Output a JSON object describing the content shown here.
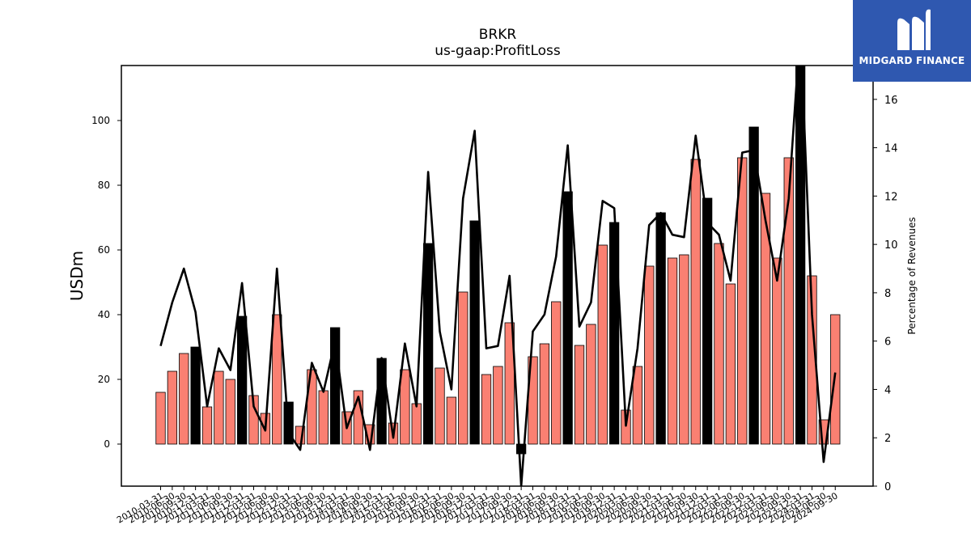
{
  "logo": {
    "text": "MIDGARD FINANCE",
    "icon": "midgard-m-logo-icon",
    "bg_color": "#2f58b0"
  },
  "chart_data": {
    "type": "bar",
    "title": "BRKR",
    "subtitle": "us-gaap:ProfitLoss",
    "ylabel": "USDm",
    "y2label": "Percentage of Revenues",
    "ylim": [
      -13,
      117
    ],
    "y2lim": [
      0,
      17.4
    ],
    "yticks": [
      0,
      20,
      40,
      60,
      80,
      100
    ],
    "y2ticks": [
      0,
      2,
      4,
      6,
      8,
      10,
      12,
      14,
      16
    ],
    "grid": false,
    "colors": {
      "quarter_bar": "#fa8072",
      "annual_bar": "#000000",
      "line": "#000000"
    },
    "categories": [
      "2010-03-31",
      "2010-06-30",
      "2010-09-30",
      "2010-12-31",
      "2011-03-31",
      "2011-06-30",
      "2011-09-30",
      "2011-12-31",
      "2012-03-31",
      "2012-06-30",
      "2012-09-30",
      "2012-12-31",
      "2013-03-31",
      "2013-06-30",
      "2013-09-30",
      "2013-12-31",
      "2014-03-31",
      "2014-06-30",
      "2014-09-30",
      "2014-12-31",
      "2015-03-31",
      "2015-06-30",
      "2015-09-30",
      "2015-12-31",
      "2016-03-31",
      "2016-06-30",
      "2016-09-30",
      "2016-12-31",
      "2017-03-31",
      "2017-06-30",
      "2017-09-30",
      "2017-12-31",
      "2018-03-31",
      "2018-06-30",
      "2018-09-30",
      "2018-12-31",
      "2019-03-31",
      "2019-06-30",
      "2019-09-30",
      "2019-12-31",
      "2020-03-31",
      "2020-06-30",
      "2020-09-30",
      "2020-12-31",
      "2021-03-31",
      "2021-06-30",
      "2021-09-30",
      "2021-12-31",
      "2022-03-31",
      "2022-06-30",
      "2022-09-30",
      "2022-12-31",
      "2023-03-31",
      "2023-06-30",
      "2023-09-30",
      "2023-12-31",
      "2024-03-31",
      "2024-06-30",
      "2024-09-30"
    ],
    "tick_labels": [
      "2010-03-31",
      "2010-06-30",
      "2010-09-30",
      "2010-12-31",
      "2011-03-31",
      "2011-06-30",
      "2011-09-30",
      "2011-12-31",
      "2012-03-31",
      "2012-06-30",
      "2012-09-30",
      "2012-12-31",
      "2013-03-31",
      "2013-06-30",
      "2013-09-30",
      "2013-12-31",
      "2014-03-31",
      "2014-06-30",
      "2014-09-30",
      "2014-12-31",
      "2015-03-31",
      "2015-06-30",
      "2015-09-30",
      "2015-12-31",
      "2016-03-31",
      "2016-06-30",
      "2016-09-30",
      "2016-12-31",
      "2017-03-31",
      "2017-06-30",
      "2017-09-30",
      "2017-12-31",
      "2018-03-31",
      "2018-06-30",
      "2018-09-30",
      "2018-12-31",
      "2019-03-31",
      "2019-06-30",
      "2019-09-30",
      "2019-12-31",
      "2020-03-31",
      "2020-06-30",
      "2020-09-30",
      "2020-12-31",
      "2021-03-31",
      "2021-06-30",
      "2021-09-30",
      "2021-12-31",
      "2022-03-31",
      "2022-06-30",
      "2022-09-30",
      "2022-12-31",
      "2023-03-31",
      "2023-06-30",
      "2023-09-30",
      "2023-12-31",
      "2024-03-31",
      "2024-06-30",
      "2024-09-30"
    ],
    "series": [
      {
        "type": "bar",
        "values": [
          16,
          22.5,
          28,
          30,
          11.5,
          22.5,
          20,
          39.5,
          15,
          9.5,
          40,
          13,
          5.5,
          23,
          16.5,
          36,
          10,
          16.5,
          6,
          26.5,
          6.5,
          23,
          12.5,
          62,
          23.5,
          14.5,
          47,
          69,
          21.5,
          24,
          37.5,
          -3,
          27,
          31,
          44,
          78,
          30.5,
          37,
          61.5,
          68.5,
          10.5,
          24,
          55,
          71.5,
          57.5,
          58.5,
          88,
          76,
          62,
          49.5,
          88.5,
          98,
          77.5,
          57.5,
          88.5,
          118,
          52,
          7.5,
          40
        ]
      },
      {
        "type": "line",
        "axis": "right",
        "values": [
          5.8,
          7.6,
          9,
          7.2,
          3.3,
          5.7,
          4.8,
          8.4,
          3.3,
          2.3,
          9.0,
          2.2,
          1.5,
          5.1,
          3.9,
          6.0,
          2.4,
          3.7,
          1.5,
          5.3,
          2.0,
          5.9,
          3.3,
          13,
          6.4,
          4,
          11.9,
          14.7,
          5.7,
          5.8,
          8.7,
          0,
          6.4,
          7.1,
          9.5,
          14.1,
          6.6,
          7.6,
          11.8,
          11.5,
          2.5,
          5.7,
          10.8,
          11.3,
          10.4,
          10.3,
          14.5,
          10.9,
          10.4,
          8.5,
          13.8,
          13.9,
          11,
          8.5,
          11.9,
          19,
          7.1,
          1.0,
          4.7
        ]
      }
    ]
  }
}
